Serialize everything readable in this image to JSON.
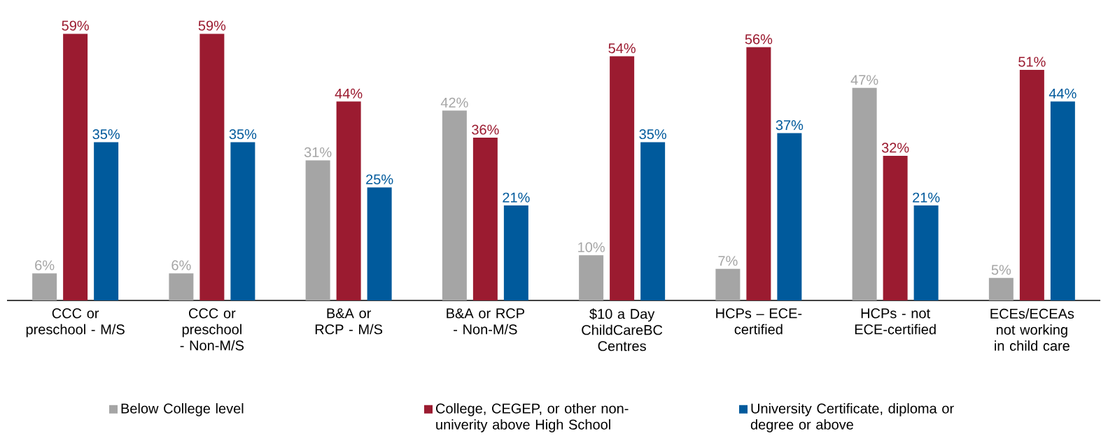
{
  "chart_data": {
    "type": "bar",
    "categories": [
      "CCC or preschool - M/S",
      "CCC or preschool - Non-M/S",
      "B&A or RCP - M/S",
      "B&A or RCP - Non-M/S",
      "$10 a Day ChildCareBC Centres",
      "HCPs – ECE-certified",
      "HCPs - not ECE-certified",
      "ECEs/ECEAs not working in child care"
    ],
    "series": [
      {
        "name": "Below College level",
        "color": "#a5a5a5",
        "values": [
          6,
          6,
          31,
          42,
          10,
          7,
          47,
          5
        ],
        "value_labels": [
          "6%",
          "6%",
          "31%",
          "42%",
          "10%",
          "7%",
          "47%",
          "5%"
        ]
      },
      {
        "name": "College, CEGEP, or other non-univerity above High School",
        "color": "#9b1b30",
        "values": [
          59,
          59,
          44,
          36,
          54,
          56,
          32,
          51
        ],
        "value_labels": [
          "59%",
          "59%",
          "44%",
          "36%",
          "54%",
          "56%",
          "32%",
          "51%"
        ]
      },
      {
        "name": "University Certificate, diploma or degree or above",
        "color": "#005a9c",
        "values": [
          35,
          35,
          25,
          21,
          35,
          37,
          21,
          44
        ],
        "value_labels": [
          "35%",
          "35%",
          "25%",
          "21%",
          "35%",
          "37%",
          "21%",
          "44%"
        ]
      }
    ],
    "grid": false,
    "legend": "bottom"
  }
}
